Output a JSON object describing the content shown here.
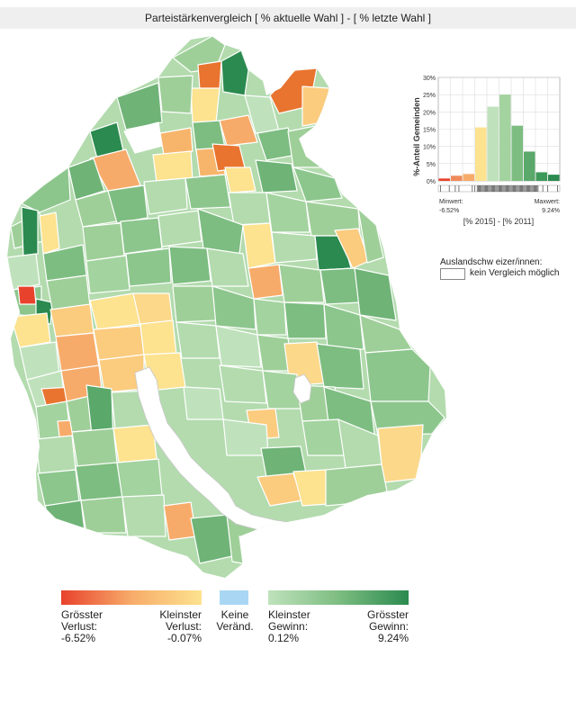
{
  "title": "Parteistärkenvergleich [ % aktuelle Wahl ] - [ % letzte Wahl ]",
  "colors": {
    "loss_max": "#e8422c",
    "loss_mid": "#f7ab6a",
    "loss_min": "#fde28f",
    "no_change": "#a9d7f3",
    "gain_min": "#bfe2bc",
    "gain_mid": "#7dbd81",
    "gain_max": "#2b8a4f",
    "water": "#ffffff",
    "border": "#ffffff"
  },
  "histogram": {
    "ylabel": "%-Anteil Gemeinden",
    "yticks": [
      "30%",
      "25%",
      "20%",
      "15%",
      "10%",
      "5%",
      "0%"
    ],
    "ylim": [
      0,
      30
    ],
    "bins": [
      {
        "value": 0.7,
        "color": "#e8422c"
      },
      {
        "value": 1.5,
        "color": "#f08a5a"
      },
      {
        "value": 2.0,
        "color": "#f7ab6a"
      },
      {
        "value": 15.5,
        "color": "#fde28f"
      },
      {
        "value": 21.5,
        "color": "#bfe2bc"
      },
      {
        "value": 25.0,
        "color": "#a3d39f"
      },
      {
        "value": 16.0,
        "color": "#7dbd81"
      },
      {
        "value": 8.5,
        "color": "#5aa86a"
      },
      {
        "value": 2.5,
        "color": "#3e9a5a"
      },
      {
        "value": 1.8,
        "color": "#2b8a4f"
      }
    ],
    "min_label": "Minwert:",
    "min_value": "-6.52%",
    "max_label": "Maxwert:",
    "max_value": "9.24%",
    "xlabel": "[% 2015] - [% 2011]"
  },
  "auslandschweizer": {
    "title": "Auslandschw eizer/innen:",
    "item": "kein Vergleich möglich"
  },
  "legend": {
    "groesster_verlust": {
      "line1": "Grösster",
      "line2": "Verlust:",
      "value": "-6.52%"
    },
    "kleinster_verlust": {
      "line1": "Kleinster",
      "line2": "Verlust:",
      "value": "-0.07%"
    },
    "keine": {
      "line1": "Keine",
      "line2": "Veränd."
    },
    "kleinster_gewinn": {
      "line1": "Kleinster",
      "line2": "Gewinn:",
      "value": "0.12%"
    },
    "groesster_gewinn": {
      "line1": "Grösster",
      "line2": "Gewinn:",
      "value": "9.24%"
    }
  }
}
